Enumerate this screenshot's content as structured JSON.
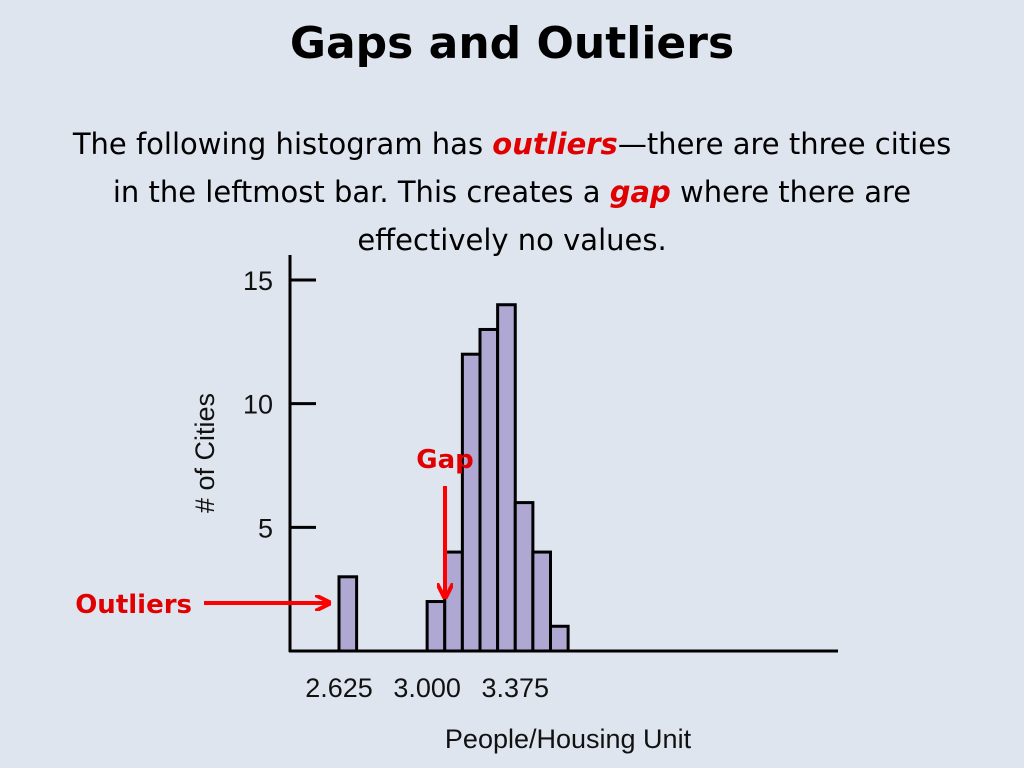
{
  "slide": {
    "title": "Gaps and Outliers",
    "body": {
      "part1": "The following histogram has ",
      "outliers_word": "outliers",
      "part2": "—there are three cities in the leftmost bar. This creates a ",
      "gap_word": "gap",
      "part3": " where there are effectively no values."
    },
    "highlight_color": "#e00000"
  },
  "annotations": {
    "gap_label": "Gap",
    "outliers_label": "Outliers",
    "arrow_color": "#ff0000"
  },
  "chart_data": {
    "type": "bar",
    "bin_width": 0.075,
    "bin_starts": [
      2.625,
      2.7,
      2.775,
      2.85,
      2.925,
      3.0,
      3.075,
      3.15,
      3.225,
      3.3,
      3.375,
      3.45,
      3.525
    ],
    "values": [
      3,
      0,
      0,
      0,
      0,
      2,
      4,
      12,
      13,
      14,
      6,
      4,
      1
    ],
    "xlim": [
      2.625,
      3.6
    ],
    "ylim": [
      0,
      15
    ],
    "xticks": [
      2.625,
      3.0,
      3.375
    ],
    "xtick_labels": [
      "2.625",
      "3.000",
      "3.375"
    ],
    "yticks": [
      5,
      10,
      15
    ],
    "ytick_labels": [
      "5",
      "10",
      "15"
    ],
    "xlabel": "People/Housing Unit",
    "ylabel": "# of Cities",
    "bar_color": "#aea8d3",
    "bar_edge_color": "#000000"
  }
}
